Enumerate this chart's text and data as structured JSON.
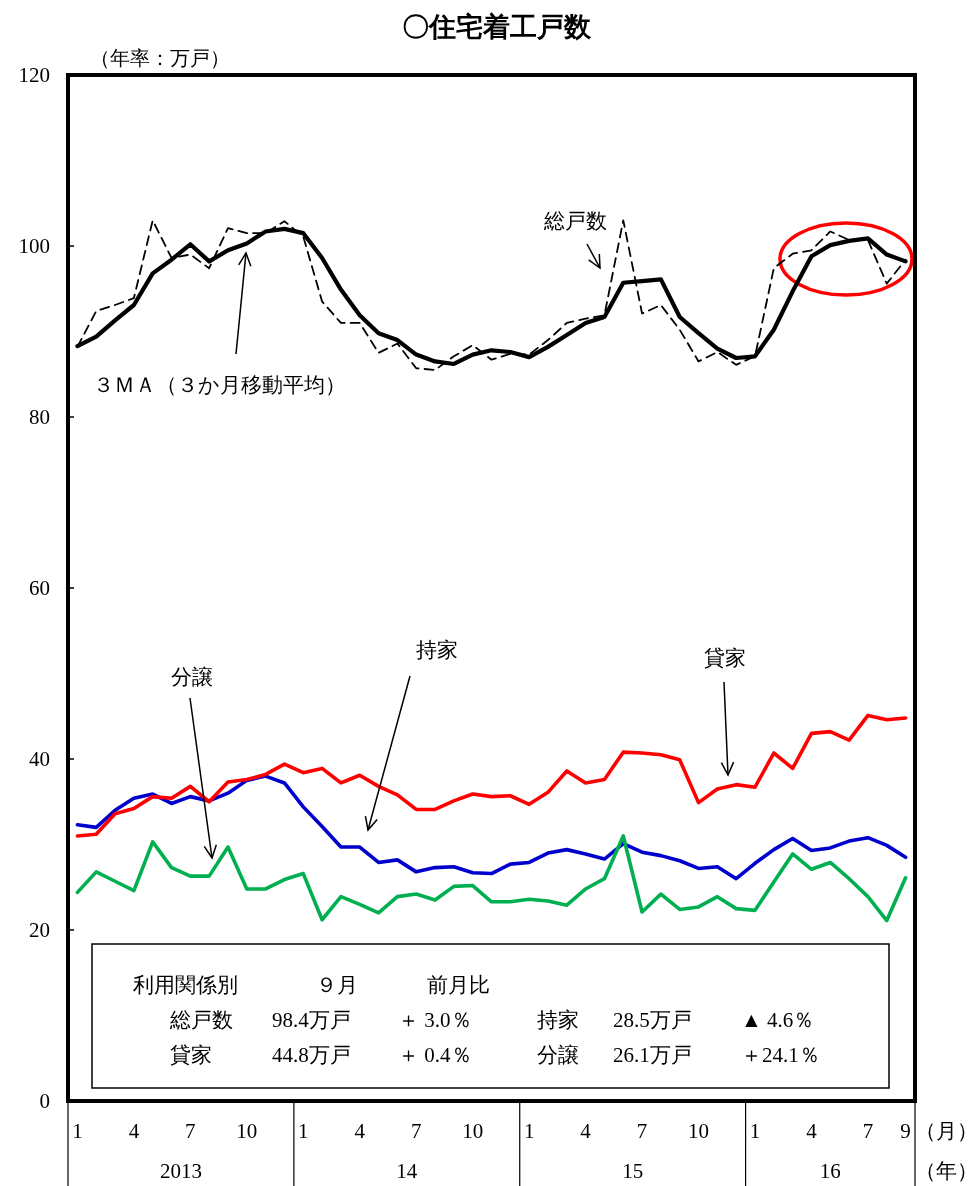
{
  "chart_data": {
    "type": "line",
    "title": "〇住宅着工戸数",
    "ylabel": "（年率：万戸）",
    "xlabel": "（月）",
    "x": [
      "2013-01",
      "2013-02",
      "2013-03",
      "2013-04",
      "2013-05",
      "2013-06",
      "2013-07",
      "2013-08",
      "2013-09",
      "2013-10",
      "2013-11",
      "2013-12",
      "2014-01",
      "2014-02",
      "2014-03",
      "2014-04",
      "2014-05",
      "2014-06",
      "2014-07",
      "2014-08",
      "2014-09",
      "2014-10",
      "2014-11",
      "2014-12",
      "2015-01",
      "2015-02",
      "2015-03",
      "2015-04",
      "2015-05",
      "2015-06",
      "2015-07",
      "2015-08",
      "2015-09",
      "2015-10",
      "2015-11",
      "2015-12",
      "2016-01",
      "2016-02",
      "2016-03",
      "2016-04",
      "2016-05",
      "2016-06",
      "2016-07",
      "2016-08",
      "2016-09"
    ],
    "xlim": [
      "2012-12-16",
      "2016-09-16"
    ],
    "xticks": [
      {
        "value": "2013-01",
        "label": "1"
      },
      {
        "value": "2013-04",
        "label": "4"
      },
      {
        "value": "2013-07",
        "label": "7"
      },
      {
        "value": "2013-10",
        "label": "10"
      },
      {
        "value": "2014-01",
        "label": "1"
      },
      {
        "value": "2014-04",
        "label": "4"
      },
      {
        "value": "2014-07",
        "label": "7"
      },
      {
        "value": "2014-10",
        "label": "10"
      },
      {
        "value": "2015-01",
        "label": "1"
      },
      {
        "value": "2015-04",
        "label": "4"
      },
      {
        "value": "2015-07",
        "label": "7"
      },
      {
        "value": "2015-10",
        "label": "10"
      },
      {
        "value": "2016-01",
        "label": "1"
      },
      {
        "value": "2016-04",
        "label": "4"
      },
      {
        "value": "2016-07",
        "label": "7"
      },
      {
        "value": "2016-09",
        "label": "9"
      }
    ],
    "ylim": [
      0,
      120
    ],
    "yticks": [
      0,
      20,
      40,
      60,
      80,
      100,
      120
    ],
    "grid": false,
    "legend": false,
    "marker": "none",
    "series": [
      {
        "name": "総戸数",
        "color": "#000000",
        "line_style": "dashed",
        "values": [
          88.2,
          92.4,
          93.1,
          93.9,
          103.0,
          98.6,
          99.0,
          97.4,
          102.1,
          101.5,
          101.5,
          102.9,
          101.1,
          93.5,
          91.0,
          91.0,
          87.5,
          88.6,
          85.7,
          85.5,
          87.1,
          88.4,
          86.7,
          87.4,
          87.3,
          89.0,
          91.0,
          91.5,
          91.9,
          103.0,
          92.1,
          93.1,
          90.2,
          86.5,
          87.6,
          86.1,
          87.1,
          97.4,
          99.1,
          99.5,
          101.7,
          100.7,
          100.7,
          95.6,
          98.4
        ]
      },
      {
        "name": "３ＭＡ（３か月移動平均）",
        "color": "#000000",
        "line_style": "solid",
        "values": [
          88.3,
          89.4,
          91.3,
          93.1,
          96.8,
          98.4,
          100.2,
          98.2,
          99.5,
          100.3,
          101.7,
          102.0,
          101.5,
          98.6,
          94.9,
          91.9,
          89.8,
          89.0,
          87.3,
          86.5,
          86.2,
          87.3,
          87.8,
          87.6,
          87.0,
          88.2,
          89.6,
          91.0,
          91.7,
          95.7,
          95.9,
          96.1,
          91.7,
          89.8,
          88.0,
          86.9,
          87.1,
          90.2,
          94.7,
          98.8,
          100.1,
          100.6,
          100.9,
          99.0,
          98.2
        ]
      },
      {
        "name": "持家",
        "color": "#0000cc",
        "line_style": "solid",
        "values": [
          32.3,
          32.0,
          34.0,
          35.4,
          35.9,
          34.8,
          35.6,
          35.1,
          36.0,
          37.5,
          38.0,
          37.2,
          34.4,
          32.1,
          29.7,
          29.7,
          27.9,
          28.2,
          26.8,
          27.3,
          27.4,
          26.7,
          26.6,
          27.7,
          27.9,
          29.0,
          29.4,
          28.9,
          28.3,
          30.1,
          29.1,
          28.7,
          28.1,
          27.2,
          27.4,
          26.0,
          27.8,
          29.4,
          30.7,
          29.3,
          29.6,
          30.4,
          30.8,
          29.9,
          28.5
        ]
      },
      {
        "name": "貸家",
        "color": "#ff0000",
        "line_style": "solid",
        "values": [
          31.0,
          31.2,
          33.6,
          34.2,
          35.6,
          35.4,
          36.8,
          35.0,
          37.3,
          37.6,
          38.2,
          39.4,
          38.4,
          38.9,
          37.2,
          38.1,
          36.8,
          35.8,
          34.1,
          34.1,
          35.1,
          35.9,
          35.6,
          35.7,
          34.7,
          36.1,
          38.6,
          37.2,
          37.6,
          40.8,
          40.7,
          40.5,
          39.9,
          34.9,
          36.5,
          37.0,
          36.7,
          40.7,
          38.9,
          43.0,
          43.2,
          42.2,
          45.1,
          44.6,
          44.8
        ]
      },
      {
        "name": "分譲",
        "color": "#00b050",
        "line_style": "solid",
        "values": [
          24.4,
          26.8,
          25.7,
          24.6,
          30.3,
          27.3,
          26.3,
          26.3,
          29.7,
          24.8,
          24.8,
          25.9,
          26.6,
          21.2,
          23.9,
          23.0,
          22.0,
          23.9,
          24.2,
          23.5,
          25.1,
          25.2,
          23.3,
          23.3,
          23.6,
          23.4,
          22.9,
          24.8,
          26.0,
          31.0,
          22.1,
          24.2,
          22.4,
          22.7,
          23.9,
          22.5,
          22.3,
          25.6,
          28.9,
          27.1,
          27.9,
          26.0,
          23.9,
          21.1,
          26.1
        ]
      }
    ],
    "annotations": [
      "2013",
      "14",
      "15",
      "16",
      "（年）",
      "利用関係別",
      "９月",
      "前月比",
      "総戸数",
      "98.4万戸",
      "＋ 3.0％",
      "持家",
      "28.5万戸",
      "▲ 4.6％",
      "貸家",
      "44.8万戸",
      "＋ 0.4％",
      "分譲",
      "26.1万戸",
      "＋24.1％"
    ]
  }
}
